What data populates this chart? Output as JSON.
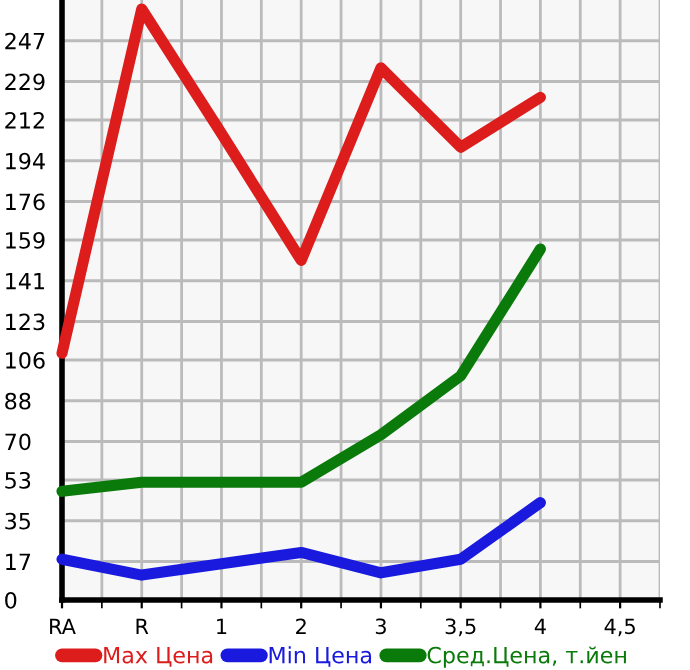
{
  "chart_data": {
    "type": "line",
    "categories": [
      "RA",
      "R",
      "1",
      "2",
      "3",
      "3,5",
      "4",
      "4,5"
    ],
    "series": [
      {
        "name": "Max Цена",
        "color": "#dd1c1c",
        "values": [
          109,
          261,
          206,
          150,
          235,
          200,
          222,
          null
        ]
      },
      {
        "name": "Min Цена",
        "color": "#1a1adf",
        "values": [
          18,
          11,
          16,
          21,
          12,
          18,
          43,
          null
        ]
      },
      {
        "name": "Сред.Цена, т.йен",
        "color": "#0a7a0a",
        "values": [
          48,
          52,
          52,
          52,
          73,
          99,
          155,
          null
        ]
      }
    ],
    "ylim": [
      0,
      265
    ],
    "yticks": [
      0,
      17,
      35,
      53,
      70,
      88,
      106,
      123,
      141,
      159,
      176,
      194,
      212,
      229,
      247
    ],
    "grid": true,
    "legend": "bottom",
    "marker": "none",
    "line_style": "solid"
  }
}
